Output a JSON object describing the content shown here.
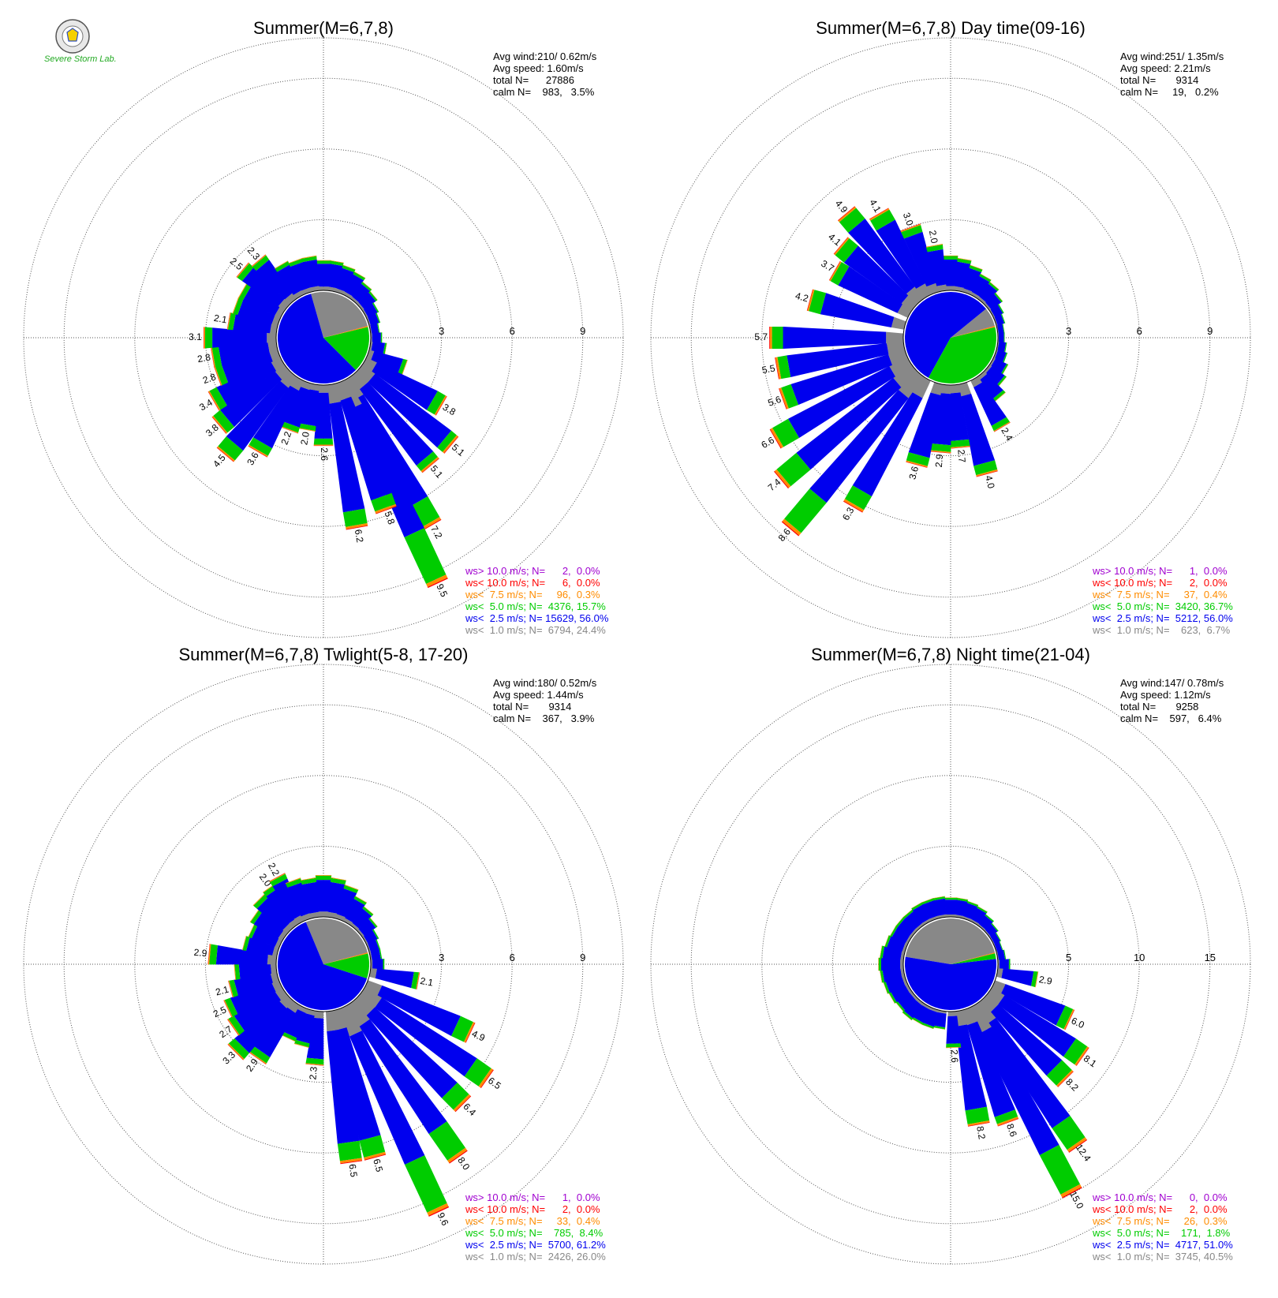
{
  "logo": {
    "text": "Severe Storm Lab."
  },
  "colors": {
    "ws_gt10": "#a000d0",
    "ws_lt10": "#ff0000",
    "ws_lt75": "#ff8c00",
    "ws_lt5": "#00cc00",
    "ws_lt25": "#0000ee",
    "ws_lt1": "#888888"
  },
  "chart_data": [
    {
      "type": "wind-rose",
      "title": "Summer(M=6,7,8)",
      "stats": [
        "Avg wind:210/ 0.62m/s",
        "Avg speed: 1.60m/s",
        "total N=      27886",
        "calm N=    983,   3.5%"
      ],
      "rticks": [
        3,
        6,
        9
      ],
      "rmax": 9,
      "spokes": [
        {
          "dir": 0,
          "value": 1.3
        },
        {
          "dir": 10,
          "value": 1.3
        },
        {
          "dir": 20,
          "value": 1.2
        },
        {
          "dir": 30,
          "value": 1.1
        },
        {
          "dir": 40,
          "value": 0.9
        },
        {
          "dir": 50,
          "value": 0.8
        },
        {
          "dir": 60,
          "value": 0.6
        },
        {
          "dir": 70,
          "value": 0.5
        },
        {
          "dir": 80,
          "value": 0.4
        },
        {
          "dir": 90,
          "value": 0.5
        },
        {
          "dir": 100,
          "value": 0.7
        },
        {
          "dir": 110,
          "value": 1.7
        },
        {
          "dir": 120,
          "value": 3.8,
          "label": "3.8"
        },
        {
          "dir": 130,
          "value": 5.1,
          "label": "5.1"
        },
        {
          "dir": 140,
          "value": 5.1,
          "label": "5.1"
        },
        {
          "dir": 150,
          "value": 7.2,
          "label": "7.2"
        },
        {
          "dir": 155,
          "value": 9.5,
          "label": "9.5"
        },
        {
          "dir": 160,
          "value": 5.8,
          "label": "5.8"
        },
        {
          "dir": 170,
          "value": 6.2,
          "label": "6.2"
        },
        {
          "dir": 180,
          "value": 2.6,
          "label": "2.6"
        },
        {
          "dir": 190,
          "value": 2.0,
          "label": "2.0"
        },
        {
          "dir": 200,
          "value": 2.2,
          "label": "2.2"
        },
        {
          "dir": 210,
          "value": 3.6,
          "label": "3.6"
        },
        {
          "dir": 220,
          "value": 4.5,
          "label": "4.5"
        },
        {
          "dir": 230,
          "value": 3.8,
          "label": "3.8"
        },
        {
          "dir": 240,
          "value": 3.4,
          "label": "3.4"
        },
        {
          "dir": 250,
          "value": 2.8,
          "label": "2.8"
        },
        {
          "dir": 260,
          "value": 2.8,
          "label": "2.8"
        },
        {
          "dir": 270,
          "value": 3.1,
          "label": "3.1"
        },
        {
          "dir": 280,
          "value": 2.1,
          "label": "2.1"
        },
        {
          "dir": 290,
          "value": 2.0
        },
        {
          "dir": 300,
          "value": 2.0
        },
        {
          "dir": 310,
          "value": 2.5,
          "label": "2.5"
        },
        {
          "dir": 320,
          "value": 2.3,
          "label": "2.3"
        },
        {
          "dir": 330,
          "value": 1.6
        },
        {
          "dir": 340,
          "value": 1.5
        },
        {
          "dir": 350,
          "value": 1.5
        }
      ],
      "pie": [
        6794,
        15629,
        4376,
        96,
        6,
        2
      ],
      "legend": [
        {
          "text": "ws> 10.0 m/s; N=      2,  0.0%",
          "color": "#a000d0"
        },
        {
          "text": "ws< 10.0 m/s; N=      6,  0.0%",
          "color": "#ff0000"
        },
        {
          "text": "ws<  7.5 m/s; N=     96,  0.3%",
          "color": "#ff8c00"
        },
        {
          "text": "ws<  5.0 m/s; N=  4376, 15.7%",
          "color": "#00cc00"
        },
        {
          "text": "ws<  2.5 m/s; N= 15629, 56.0%",
          "color": "#0000ee"
        },
        {
          "text": "ws<  1.0 m/s; N=  6794, 24.4%",
          "color": "#888888"
        }
      ]
    },
    {
      "type": "wind-rose",
      "title": "Summer(M=6,7,8) Day time(09-16)",
      "stats": [
        "Avg wind:251/ 1.35m/s",
        "Avg speed: 2.21m/s",
        "total N=       9314",
        "calm N=     19,   0.2%"
      ],
      "rticks": [
        3,
        6,
        9
      ],
      "rmax": 9,
      "spokes": [
        {
          "dir": 0,
          "value": 1.5
        },
        {
          "dir": 10,
          "value": 1.4
        },
        {
          "dir": 20,
          "value": 1.2
        },
        {
          "dir": 30,
          "value": 1.0
        },
        {
          "dir": 40,
          "value": 0.9
        },
        {
          "dir": 50,
          "value": 0.7
        },
        {
          "dir": 60,
          "value": 0.5
        },
        {
          "dir": 70,
          "value": 0.4
        },
        {
          "dir": 80,
          "value": 0.3
        },
        {
          "dir": 90,
          "value": 0.3
        },
        {
          "dir": 100,
          "value": 0.4
        },
        {
          "dir": 110,
          "value": 0.5
        },
        {
          "dir": 120,
          "value": 0.7
        },
        {
          "dir": 130,
          "value": 0.9
        },
        {
          "dir": 140,
          "value": 1.3
        },
        {
          "dir": 150,
          "value": 2.4,
          "label": "2.4"
        },
        {
          "dir": 165,
          "value": 4.0,
          "label": "4.0"
        },
        {
          "dir": 175,
          "value": 2.7,
          "label": "2.7"
        },
        {
          "dir": 185,
          "value": 2.9,
          "label": "2.9"
        },
        {
          "dir": 195,
          "value": 3.6,
          "label": "3.6"
        },
        {
          "dir": 210,
          "value": 6.3,
          "label": "6.3"
        },
        {
          "dir": 220,
          "value": 8.6,
          "label": "8.6"
        },
        {
          "dir": 230,
          "value": 7.4,
          "label": "7.4"
        },
        {
          "dir": 240,
          "value": 6.6,
          "label": "6.6"
        },
        {
          "dir": 250,
          "value": 5.6,
          "label": "5.6"
        },
        {
          "dir": 260,
          "value": 5.5,
          "label": "5.5"
        },
        {
          "dir": 270,
          "value": 5.7,
          "label": "5.7"
        },
        {
          "dir": 285,
          "value": 4.2,
          "label": "4.2"
        },
        {
          "dir": 300,
          "value": 3.7,
          "label": "3.7"
        },
        {
          "dir": 310,
          "value": 4.1,
          "label": "4.1"
        },
        {
          "dir": 320,
          "value": 4.9,
          "label": "4.9"
        },
        {
          "dir": 330,
          "value": 4.1,
          "label": "4.1"
        },
        {
          "dir": 340,
          "value": 3.0,
          "label": "3.0"
        },
        {
          "dir": 350,
          "value": 2.0,
          "label": "2.0"
        }
      ],
      "pie": [
        623,
        5212,
        3420,
        37,
        2,
        1
      ],
      "legend": [
        {
          "text": "ws> 10.0 m/s; N=      1,  0.0%",
          "color": "#a000d0"
        },
        {
          "text": "ws< 10.0 m/s; N=      2,  0.0%",
          "color": "#ff0000"
        },
        {
          "text": "ws<  7.5 m/s; N=     37,  0.4%",
          "color": "#ff8c00"
        },
        {
          "text": "ws<  5.0 m/s; N=  3420, 36.7%",
          "color": "#00cc00"
        },
        {
          "text": "ws<  2.5 m/s; N=  5212, 56.0%",
          "color": "#0000ee"
        },
        {
          "text": "ws<  1.0 m/s; N=    623,  6.7%",
          "color": "#888888"
        }
      ]
    },
    {
      "type": "wind-rose",
      "title": "Summer(M=6,7,8) Twlight(5-8, 17-20)",
      "stats": [
        "Avg wind:180/ 0.52m/s",
        "Avg speed: 1.44m/s",
        "total N=       9314",
        "calm N=    367,   3.9%"
      ],
      "rticks": [
        3,
        6,
        9
      ],
      "rmax": 9,
      "spokes": [
        {
          "dir": 0,
          "value": 1.8
        },
        {
          "dir": 10,
          "value": 1.7
        },
        {
          "dir": 20,
          "value": 1.5
        },
        {
          "dir": 30,
          "value": 1.2
        },
        {
          "dir": 40,
          "value": 1.0
        },
        {
          "dir": 50,
          "value": 0.8
        },
        {
          "dir": 60,
          "value": 0.6
        },
        {
          "dir": 70,
          "value": 0.5
        },
        {
          "dir": 80,
          "value": 0.5
        },
        {
          "dir": 90,
          "value": 0.6
        },
        {
          "dir": 100,
          "value": 2.1,
          "label": "2.1"
        },
        {
          "dir": 115,
          "value": 4.9,
          "label": "4.9"
        },
        {
          "dir": 125,
          "value": 6.5,
          "label": "6.5"
        },
        {
          "dir": 135,
          "value": 6.4,
          "label": "6.4"
        },
        {
          "dir": 145,
          "value": 8.0,
          "label": "8.0"
        },
        {
          "dir": 155,
          "value": 9.6,
          "label": "9.6"
        },
        {
          "dir": 165,
          "value": 6.5,
          "label": "6.5"
        },
        {
          "dir": 172,
          "value": 6.5,
          "label": "6.5"
        },
        {
          "dir": 185,
          "value": 2.3,
          "label": "2.3"
        },
        {
          "dir": 195,
          "value": 1.6
        },
        {
          "dir": 205,
          "value": 1.5
        },
        {
          "dir": 215,
          "value": 2.9,
          "label": "2.9"
        },
        {
          "dir": 225,
          "value": 3.3,
          "label": "3.3"
        },
        {
          "dir": 235,
          "value": 2.7,
          "label": "2.7"
        },
        {
          "dir": 245,
          "value": 2.5,
          "label": "2.5"
        },
        {
          "dir": 255,
          "value": 2.1,
          "label": "2.1"
        },
        {
          "dir": 265,
          "value": 1.8
        },
        {
          "dir": 275,
          "value": 2.9,
          "label": "2.9"
        },
        {
          "dir": 285,
          "value": 1.5
        },
        {
          "dir": 295,
          "value": 1.4
        },
        {
          "dir": 305,
          "value": 1.6
        },
        {
          "dir": 315,
          "value": 1.9
        },
        {
          "dir": 325,
          "value": 2.0,
          "label": "2.0"
        },
        {
          "dir": 332,
          "value": 2.2,
          "label": "2.2"
        },
        {
          "dir": 340,
          "value": 1.8
        },
        {
          "dir": 350,
          "value": 1.7
        }
      ],
      "pie": [
        2426,
        5700,
        785,
        33,
        2,
        1
      ],
      "legend": [
        {
          "text": "ws> 10.0 m/s; N=      1,  0.0%",
          "color": "#a000d0"
        },
        {
          "text": "ws< 10.0 m/s; N=      2,  0.0%",
          "color": "#ff0000"
        },
        {
          "text": "ws<  7.5 m/s; N=     33,  0.4%",
          "color": "#ff8c00"
        },
        {
          "text": "ws<  5.0 m/s; N=    785,  8.4%",
          "color": "#00cc00"
        },
        {
          "text": "ws<  2.5 m/s; N=  5700, 61.2%",
          "color": "#0000ee"
        },
        {
          "text": "ws<  1.0 m/s; N=  2426, 26.0%",
          "color": "#888888"
        }
      ]
    },
    {
      "type": "wind-rose",
      "title": "Summer(M=6,7,8) Night time(21-04)",
      "stats": [
        "Avg wind:147/ 0.78m/s",
        "Avg speed: 1.12m/s",
        "total N=       9258",
        "calm N=    597,   6.4%"
      ],
      "rticks": [
        5,
        10,
        15
      ],
      "rmax": 15,
      "spokes": [
        {
          "dir": 0,
          "value": 1.4
        },
        {
          "dir": 10,
          "value": 1.4
        },
        {
          "dir": 20,
          "value": 1.3
        },
        {
          "dir": 30,
          "value": 1.2
        },
        {
          "dir": 40,
          "value": 1.0
        },
        {
          "dir": 50,
          "value": 0.8
        },
        {
          "dir": 60,
          "value": 0.6
        },
        {
          "dir": 70,
          "value": 0.5
        },
        {
          "dir": 80,
          "value": 0.6
        },
        {
          "dir": 90,
          "value": 0.9
        },
        {
          "dir": 100,
          "value": 2.9,
          "label": "2.9"
        },
        {
          "dir": 115,
          "value": 6.0,
          "label": "6.0"
        },
        {
          "dir": 125,
          "value": 8.1,
          "label": "8.1"
        },
        {
          "dir": 135,
          "value": 8.2,
          "label": "8.2"
        },
        {
          "dir": 145,
          "value": 12.4,
          "label": "12.4"
        },
        {
          "dir": 152,
          "value": 15.0,
          "label": "15.0"
        },
        {
          "dir": 160,
          "value": 8.6,
          "label": "8.6"
        },
        {
          "dir": 170,
          "value": 8.2,
          "label": "8.2"
        },
        {
          "dir": 178,
          "value": 2.6,
          "label": "2.6"
        },
        {
          "dir": 190,
          "value": 1.3
        },
        {
          "dir": 200,
          "value": 1.4
        },
        {
          "dir": 210,
          "value": 1.4
        },
        {
          "dir": 220,
          "value": 1.5
        },
        {
          "dir": 230,
          "value": 1.4
        },
        {
          "dir": 240,
          "value": 1.5
        },
        {
          "dir": 250,
          "value": 1.6
        },
        {
          "dir": 260,
          "value": 1.7
        },
        {
          "dir": 270,
          "value": 1.8
        },
        {
          "dir": 280,
          "value": 1.7
        },
        {
          "dir": 290,
          "value": 1.5
        },
        {
          "dir": 300,
          "value": 1.4
        },
        {
          "dir": 310,
          "value": 1.4
        },
        {
          "dir": 320,
          "value": 1.4
        },
        {
          "dir": 330,
          "value": 1.5
        },
        {
          "dir": 340,
          "value": 1.5
        },
        {
          "dir": 350,
          "value": 1.5
        }
      ],
      "pie": [
        3745,
        4717,
        171,
        26,
        2,
        0
      ],
      "legend": [
        {
          "text": "ws> 10.0 m/s; N=      0,  0.0%",
          "color": "#a000d0"
        },
        {
          "text": "ws< 10.0 m/s; N=      2,  0.0%",
          "color": "#ff0000"
        },
        {
          "text": "ws<  7.5 m/s; N=     26,  0.3%",
          "color": "#ff8c00"
        },
        {
          "text": "ws<  5.0 m/s; N=    171,  1.8%",
          "color": "#00cc00"
        },
        {
          "text": "ws<  2.5 m/s; N=  4717, 51.0%",
          "color": "#0000ee"
        },
        {
          "text": "ws<  1.0 m/s; N=  3745, 40.5%",
          "color": "#888888"
        }
      ]
    }
  ]
}
